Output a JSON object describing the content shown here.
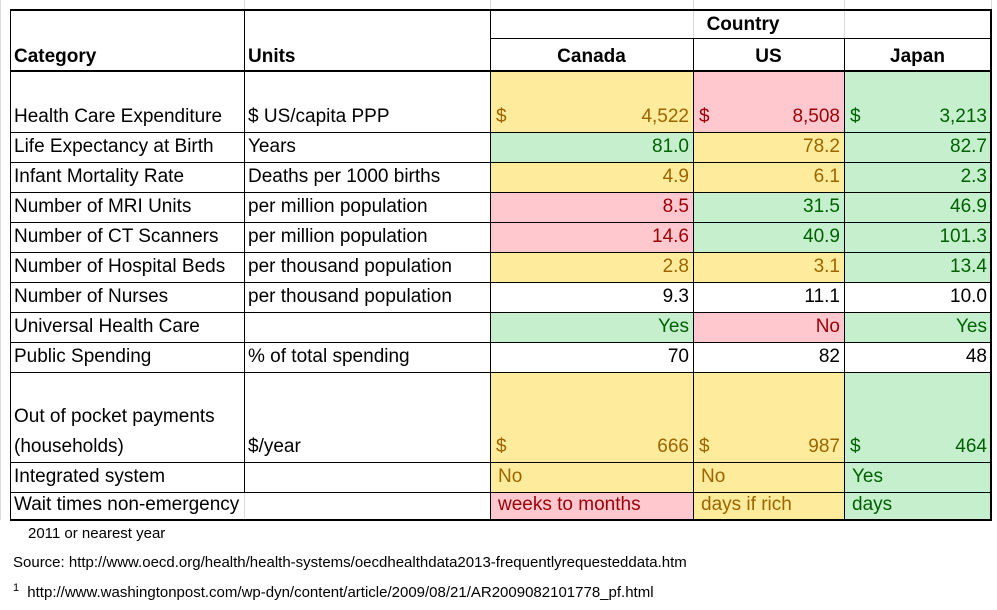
{
  "header": {
    "country_label": "Country",
    "category_label": "Category",
    "units_label": "Units",
    "columns": [
      "Canada",
      "US",
      "Japan"
    ]
  },
  "rows": [
    {
      "category": "Health Care Expenditure",
      "units": "$ US/capita PPP",
      "values": [
        {
          "text": "4,522",
          "prefix": "$",
          "style": "y"
        },
        {
          "text": "8,508",
          "prefix": "$",
          "style": "r"
        },
        {
          "text": "3,213",
          "prefix": "$",
          "style": "g"
        }
      ]
    },
    {
      "category": "Life Expectancy at Birth",
      "units": "Years",
      "values": [
        {
          "text": "81.0",
          "style": "g"
        },
        {
          "text": "78.2",
          "style": "y"
        },
        {
          "text": "82.7",
          "style": "g"
        }
      ]
    },
    {
      "category": "Infant Mortality Rate",
      "units": "Deaths per 1000 births",
      "values": [
        {
          "text": "4.9",
          "style": "y"
        },
        {
          "text": "6.1",
          "style": "y"
        },
        {
          "text": "2.3",
          "style": "g"
        }
      ]
    },
    {
      "category": "Number of MRI Units",
      "units": "per million population",
      "values": [
        {
          "text": "8.5",
          "style": "r"
        },
        {
          "text": "31.5",
          "style": "g"
        },
        {
          "text": "46.9",
          "style": "g"
        }
      ]
    },
    {
      "category": "Number of CT Scanners",
      "units": "per million population",
      "values": [
        {
          "text": "14.6",
          "style": "r"
        },
        {
          "text": "40.9",
          "style": "g"
        },
        {
          "text": "101.3",
          "style": "g"
        }
      ]
    },
    {
      "category": "Number of Hospital Beds",
      "units": "per thousand population",
      "values": [
        {
          "text": "2.8",
          "style": "y"
        },
        {
          "text": "3.1",
          "style": "y"
        },
        {
          "text": "13.4",
          "style": "g"
        }
      ]
    },
    {
      "category": "Number of Nurses",
      "units": "per thousand population",
      "values": [
        {
          "text": "9.3",
          "style": ""
        },
        {
          "text": "11.1",
          "style": ""
        },
        {
          "text": "10.0",
          "style": ""
        }
      ]
    },
    {
      "category": "Universal Health Care",
      "units": "",
      "values": [
        {
          "text": "Yes",
          "style": "g"
        },
        {
          "text": "No",
          "style": "r"
        },
        {
          "text": "Yes",
          "style": "g"
        }
      ]
    },
    {
      "category": "Public Spending",
      "units": "% of total spending",
      "values": [
        {
          "text": "70",
          "style": ""
        },
        {
          "text": "82",
          "style": ""
        },
        {
          "text": "48",
          "style": ""
        }
      ]
    },
    {
      "category_line1": "Out of pocket payments",
      "category": "(households)",
      "units": "$/year",
      "values": [
        {
          "text": "666",
          "prefix": "$",
          "style": "y"
        },
        {
          "text": "987",
          "prefix": "$",
          "style": "y"
        },
        {
          "text": "464",
          "prefix": "$",
          "style": "g"
        }
      ]
    },
    {
      "category": "Integrated system",
      "units": "",
      "values": [
        {
          "text": "No",
          "style": "y",
          "align": "left"
        },
        {
          "text": "No",
          "style": "y",
          "align": "left"
        },
        {
          "text": "Yes",
          "style": "g",
          "align": "left"
        }
      ]
    },
    {
      "category": "Wait times non-emergency",
      "units": "",
      "values": [
        {
          "text": "weeks to months",
          "style": "r",
          "align": "left"
        },
        {
          "text": "days if rich",
          "style": "y",
          "align": "left"
        },
        {
          "text": "days",
          "style": "g",
          "align": "left"
        }
      ]
    }
  ],
  "footnotes": {
    "year_note": "2011 or nearest year",
    "source": "Source: http://www.oecd.org/health/health-systems/oecdhealthdata2013-frequentlyrequesteddata.htm",
    "ref_marker": "1",
    "ref_url": "http://www.washingtonpost.com/wp-dyn/content/article/2009/08/21/AR2009082101778_pf.html"
  },
  "colors": {
    "yellow_fill": "#ffeb9c",
    "yellow_text": "#9c6500",
    "red_fill": "#ffc7ce",
    "red_text": "#9c0006",
    "green_fill": "#c6efce",
    "green_text": "#006100",
    "gridline": "#d9d9d9"
  }
}
